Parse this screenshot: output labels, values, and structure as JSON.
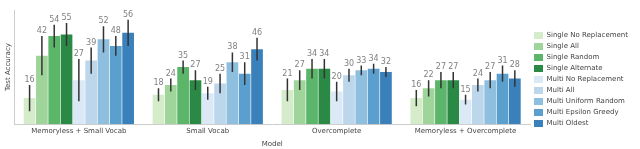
{
  "chart_data": {
    "type": "bar",
    "x_label": "Model",
    "y_label": "Test Accuracy",
    "categories": [
      "Memoryless + Small Vocab",
      "Small Vocab",
      "Overcomplete",
      "Memoryless + Overcomplete"
    ],
    "ylim": [
      0,
      70
    ],
    "tick_labels": "x",
    "grid": false,
    "legend": "right",
    "data_labels": true,
    "series": [
      {
        "name": "Single No Replacement",
        "color": "#d4ecc9",
        "values": [
          16,
          18,
          21,
          16
        ],
        "errors": [
          8,
          4,
          7,
          5
        ]
      },
      {
        "name": "Single All",
        "color": "#9fd49a",
        "values": [
          42,
          24,
          27,
          22
        ],
        "errors": [
          12,
          4,
          6,
          5
        ]
      },
      {
        "name": "Single Random",
        "color": "#5bb66a",
        "values": [
          54,
          35,
          34,
          27
        ],
        "errors": [
          7,
          4,
          6,
          5
        ]
      },
      {
        "name": "Single Alternate",
        "color": "#2a8a45",
        "values": [
          55,
          27,
          34,
          27
        ],
        "errors": [
          7,
          6,
          6,
          5
        ]
      },
      {
        "name": "Multi No Replacement",
        "color": "#dbe9f6",
        "values": [
          27,
          19,
          20,
          15
        ],
        "errors": [
          13,
          4,
          6,
          3
        ]
      },
      {
        "name": "Multi All",
        "color": "#bcd6ec",
        "values": [
          39,
          25,
          30,
          24
        ],
        "errors": [
          8,
          6,
          4,
          4
        ]
      },
      {
        "name": "Multi Uniform Random",
        "color": "#8fbfdf",
        "values": [
          52,
          38,
          33,
          27
        ],
        "errors": [
          8,
          6,
          3,
          5
        ]
      },
      {
        "name": "Multi Epsilon Greedy",
        "color": "#5b9fcf",
        "values": [
          48,
          31,
          34,
          31
        ],
        "errors": [
          6,
          7,
          3,
          5
        ]
      },
      {
        "name": "Multi Oldest",
        "color": "#3a80bb",
        "values": [
          56,
          46,
          32,
          28
        ],
        "errors": [
          8,
          7,
          3,
          5
        ]
      }
    ]
  }
}
